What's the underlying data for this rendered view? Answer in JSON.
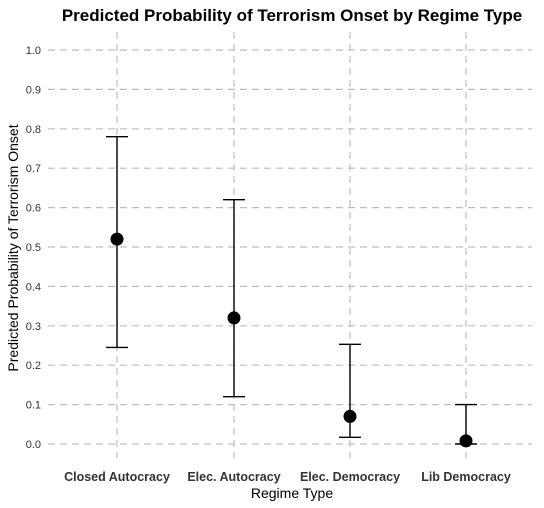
{
  "chart_data": {
    "type": "scatter",
    "subtype": "point-range",
    "title": "Predicted Probability of Terrorism Onset by Regime Type",
    "xlabel": "Regime Type",
    "ylabel": "Predicted Probability of Terrorism Onset",
    "categories": [
      "Closed Autocracy",
      "Elec. Autocracy",
      "Elec. Democracy",
      "Lib Democracy"
    ],
    "values": [
      0.52,
      0.32,
      0.07,
      0.008
    ],
    "lower": [
      0.245,
      0.12,
      0.017,
      0.0
    ],
    "upper": [
      0.78,
      0.62,
      0.253,
      0.1
    ],
    "yticks": [
      "0.0",
      "0.1",
      "0.2",
      "0.3",
      "0.4",
      "0.5",
      "0.6",
      "0.7",
      "0.8",
      "0.9",
      "1.0"
    ],
    "ylim": [
      0.0,
      1.0
    ],
    "grid": true,
    "legend": "none"
  }
}
